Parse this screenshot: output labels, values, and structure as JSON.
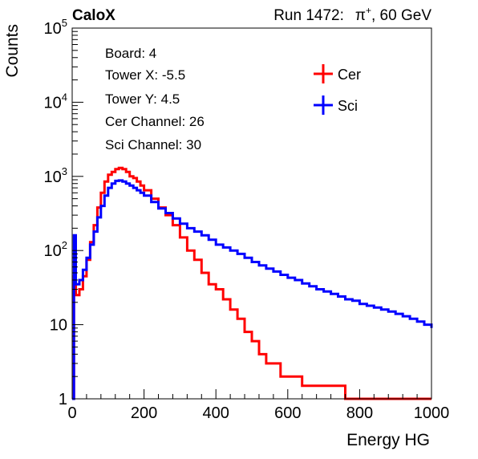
{
  "header": {
    "brand": "CaloX",
    "run_label": "Run 1472:",
    "beam_particle": "π",
    "beam_charge": "+",
    "beam_energy": ", 60 GeV"
  },
  "info_box": {
    "lines": [
      "Board: 4",
      "Tower X: -5.5",
      "Tower Y: 4.5",
      "Cer Channel: 26",
      "Sci Channel: 30"
    ]
  },
  "chart_data": {
    "type": "line",
    "title": "",
    "xlabel": "Energy HG",
    "ylabel": "Counts",
    "xlim": [
      0,
      1000
    ],
    "ylim": [
      1,
      100000
    ],
    "yscale": "log",
    "x_ticks": [
      "0",
      "200",
      "400",
      "600",
      "800",
      "1000"
    ],
    "y_ticks": [
      {
        "value": 1,
        "label": "1"
      },
      {
        "value": 10,
        "label": "10"
      },
      {
        "value": 100,
        "base": "10",
        "exp": "2"
      },
      {
        "value": 1000,
        "base": "10",
        "exp": "3"
      },
      {
        "value": 10000,
        "base": "10",
        "exp": "4"
      },
      {
        "value": 100000,
        "base": "10",
        "exp": "5"
      }
    ],
    "grid": false,
    "legend_position": "top-right",
    "x": [
      0,
      5,
      10,
      20,
      30,
      40,
      50,
      60,
      70,
      80,
      90,
      100,
      110,
      120,
      130,
      140,
      150,
      160,
      170,
      180,
      190,
      200,
      220,
      240,
      260,
      280,
      300,
      320,
      340,
      360,
      380,
      400,
      420,
      440,
      460,
      480,
      500,
      520,
      540,
      560,
      580,
      600,
      620,
      640,
      660,
      680,
      700,
      720,
      740,
      760,
      780,
      800,
      820,
      840,
      860,
      880,
      900,
      920,
      940,
      960,
      980,
      1000
    ],
    "series": [
      {
        "name": "Cer",
        "color": "#ff0000",
        "values": [
          1,
          45,
          25,
          30,
          45,
          75,
          130,
          220,
          380,
          600,
          850,
          1050,
          1150,
          1250,
          1300,
          1250,
          1150,
          1000,
          950,
          850,
          750,
          650,
          500,
          380,
          300,
          220,
          150,
          100,
          75,
          50,
          35,
          30,
          22,
          16,
          12,
          8,
          6,
          4,
          3,
          3,
          2,
          2,
          2,
          1.5,
          1.5,
          1.5,
          1.5,
          1.5,
          1.5,
          1,
          1,
          1,
          1,
          1,
          1,
          1,
          1,
          1,
          1,
          1,
          1,
          1
        ]
      },
      {
        "name": "Sci",
        "color": "#0000ff",
        "values": [
          1,
          160,
          35,
          40,
          55,
          80,
          120,
          180,
          280,
          400,
          550,
          700,
          800,
          870,
          880,
          850,
          800,
          750,
          700,
          650,
          600,
          550,
          450,
          370,
          320,
          270,
          230,
          200,
          180,
          160,
          140,
          120,
          110,
          100,
          90,
          80,
          70,
          63,
          57,
          52,
          47,
          43,
          40,
          36,
          33,
          30,
          28,
          26,
          24,
          22,
          21,
          19,
          18,
          17,
          16,
          15,
          14,
          13,
          12,
          11,
          10,
          9
        ]
      }
    ]
  }
}
